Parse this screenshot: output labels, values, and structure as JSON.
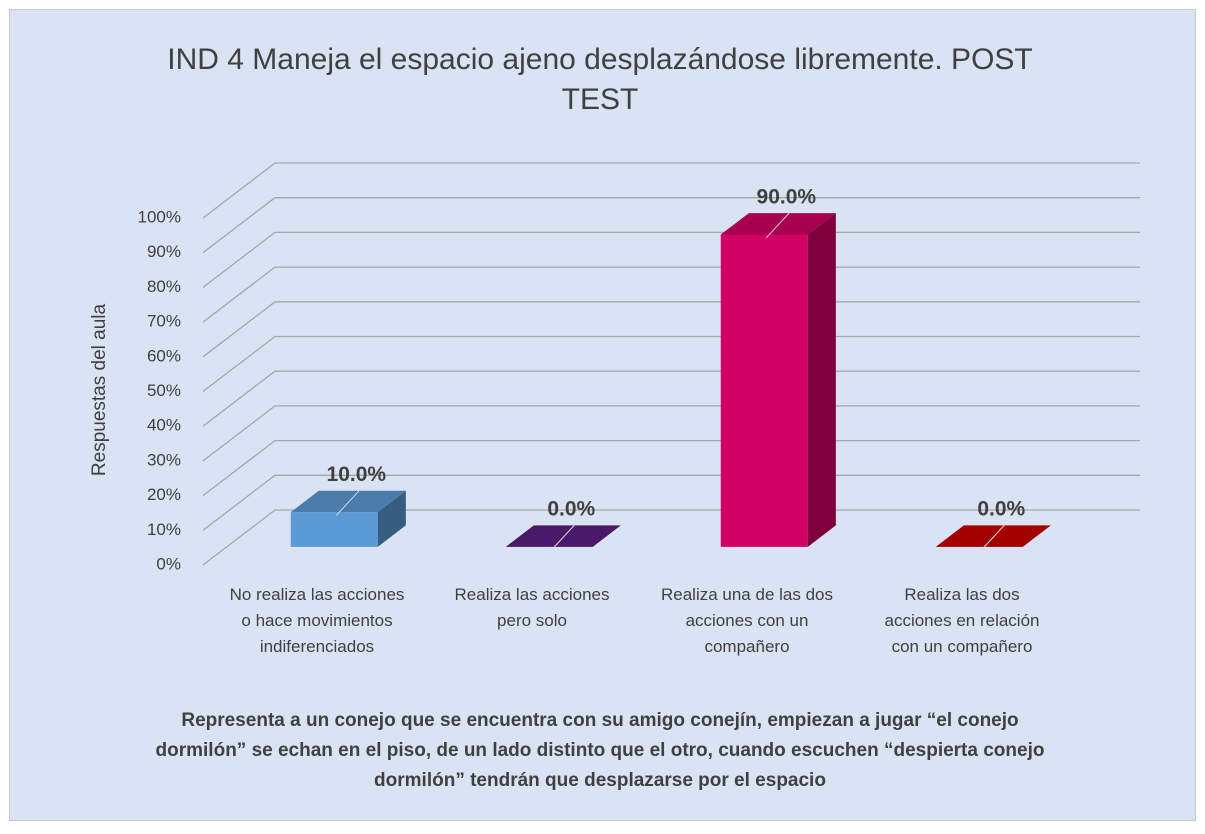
{
  "chart_data": {
    "type": "bar3d",
    "title": "IND 4 Maneja el espacio ajeno desplazándose libremente. POST TEST",
    "ylabel": "Respuestas del aula",
    "xlabel": "Representa a un conejo que se encuentra con su amigo conejín, empiezan a jugar “el conejo dormilón” se echan en el piso, de un lado distinto que el otro, cuando escuchen “despierta conejo dormilón” tendrán que desplazarse por el espacio",
    "categories": [
      "No realiza las acciones o hace movimientos indiferenciados",
      "Realiza las acciones pero solo",
      "Realiza una de las dos acciones con un compañero",
      "Realiza las dos acciones en relación con un compañero"
    ],
    "values": [
      10,
      0,
      90,
      0
    ],
    "value_labels": [
      "10.0%",
      "0.0%",
      "90.0%",
      "0.0%"
    ],
    "colors": [
      "#5b9bd5",
      "#5c1f82",
      "#d10064",
      "#cc0000"
    ],
    "ylim": [
      0,
      100
    ],
    "yticks": [
      {
        "value": 0,
        "label": "0%"
      },
      {
        "value": 10,
        "label": "10%"
      },
      {
        "value": 20,
        "label": "20%"
      },
      {
        "value": 30,
        "label": "30%"
      },
      {
        "value": 40,
        "label": "40%"
      },
      {
        "value": 50,
        "label": "50%"
      },
      {
        "value": 60,
        "label": "60%"
      },
      {
        "value": 70,
        "label": "70%"
      },
      {
        "value": 80,
        "label": "80%"
      },
      {
        "value": 90,
        "label": "90%"
      },
      {
        "value": 100,
        "label": "100%"
      }
    ],
    "grid": true
  }
}
